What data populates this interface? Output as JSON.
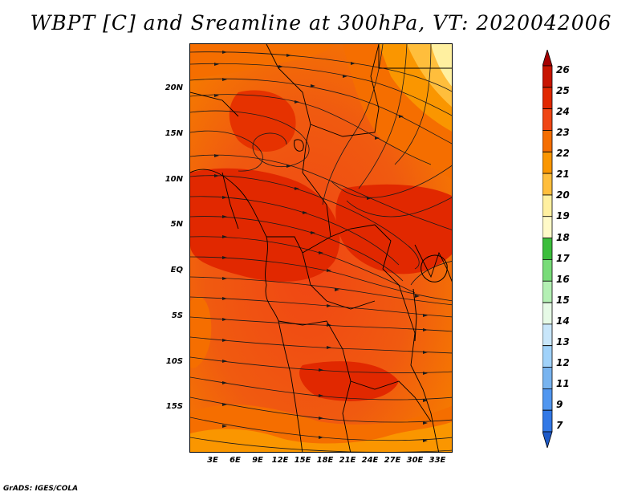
{
  "title": "WBPT [C] and Sreamline at 300hPa, VT: 2020042006",
  "credit": "GrADS: IGES/COLA",
  "map": {
    "lat_labels": [
      "20N",
      "15N",
      "10N",
      "5N",
      "EQ",
      "5S",
      "10S",
      "15S"
    ],
    "lon_labels": [
      "3E",
      "6E",
      "9E",
      "12E",
      "15E",
      "18E",
      "21E",
      "24E",
      "27E",
      "30E",
      "33E"
    ],
    "lon_range": [
      0,
      35
    ],
    "lat_range": [
      -20,
      25
    ]
  },
  "colorbar": {
    "labels": [
      "26",
      "25",
      "24",
      "23",
      "22",
      "21",
      "20",
      "19",
      "18",
      "17",
      "16",
      "15",
      "14",
      "13",
      "12",
      "11",
      "9",
      "7"
    ],
    "colors": [
      "#a50000",
      "#c81400",
      "#e12800",
      "#f04614",
      "#f56e00",
      "#fa9600",
      "#ffbe3c",
      "#fff0a0",
      "#fffac8",
      "#3cbe3c",
      "#78dc78",
      "#b4f0b4",
      "#e6fae6",
      "#c8e6fa",
      "#a0d2fa",
      "#78b4f0",
      "#5096f0",
      "#3278e6",
      "#1e5ac8"
    ]
  }
}
